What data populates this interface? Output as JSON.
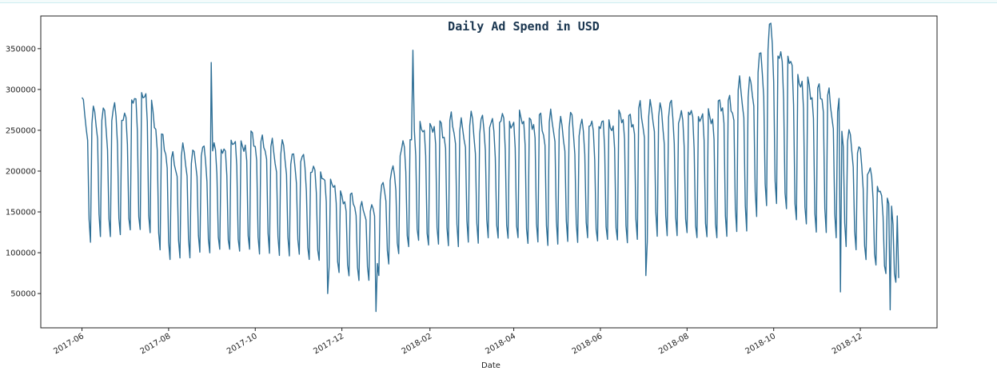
{
  "page": {
    "background": "#ffffff"
  },
  "chart_data": {
    "type": "line",
    "title": "Daily Ad Spend in USD",
    "xlabel": "Date",
    "ylabel": "",
    "line_color": "#2e6f96",
    "grid": false,
    "legend": "none",
    "x_start": "2017-06-01",
    "x_end": "2018-12-28",
    "xlim": [
      "2017-05-03",
      "2019-01-24"
    ],
    "ylim": [
      8000,
      390000
    ],
    "x_ticks": [
      "2017-06-01",
      "2017-08-01",
      "2017-10-01",
      "2017-12-01",
      "2018-02-01",
      "2018-04-01",
      "2018-06-01",
      "2018-08-01",
      "2018-10-01",
      "2018-12-01"
    ],
    "x_tick_labels": [
      "2017-06",
      "2017-08",
      "2017-10",
      "2017-12",
      "2018-02",
      "2018-04",
      "2018-06",
      "2018-08",
      "2018-10",
      "2018-12"
    ],
    "y_ticks": [
      50000,
      100000,
      150000,
      200000,
      250000,
      300000,
      350000
    ],
    "y_tick_labels": [
      "50000",
      "100000",
      "150000",
      "200000",
      "250000",
      "300000",
      "350000"
    ],
    "weekly_pattern": [
      1.0,
      1.02,
      1.0,
      0.97,
      0.88,
      0.52,
      0.44
    ],
    "peak_anchors": [
      [
        "2017-06-01",
        268000
      ],
      [
        "2017-07-01",
        270000
      ],
      [
        "2017-07-15",
        298000
      ],
      [
        "2017-08-01",
        215000
      ],
      [
        "2017-09-01",
        225000
      ],
      [
        "2017-10-01",
        238000
      ],
      [
        "2017-11-01",
        215000
      ],
      [
        "2017-11-20",
        190000
      ],
      [
        "2017-12-01",
        170000
      ],
      [
        "2017-12-22",
        150000
      ],
      [
        "2018-01-05",
        200000
      ],
      [
        "2018-01-20",
        250000
      ],
      [
        "2018-02-15",
        255000
      ],
      [
        "2018-04-01",
        262000
      ],
      [
        "2018-06-01",
        255000
      ],
      [
        "2018-07-10",
        275000
      ],
      [
        "2018-08-15",
        265000
      ],
      [
        "2018-09-15",
        305000
      ],
      [
        "2018-09-28",
        365000
      ],
      [
        "2018-10-10",
        335000
      ],
      [
        "2018-10-25",
        300000
      ],
      [
        "2018-11-10",
        290000
      ],
      [
        "2018-11-20",
        255000
      ],
      [
        "2018-12-10",
        190000
      ],
      [
        "2018-12-28",
        140000
      ]
    ],
    "outliers": [
      [
        "2017-06-01",
        290000
      ],
      [
        "2017-08-31",
        333000
      ],
      [
        "2017-11-21",
        50000
      ],
      [
        "2017-12-25",
        28000
      ],
      [
        "2018-01-20",
        348000
      ],
      [
        "2018-07-03",
        72000
      ],
      [
        "2018-09-28",
        380000
      ],
      [
        "2018-11-17",
        52000
      ],
      [
        "2018-12-22",
        30000
      ],
      [
        "2018-12-28",
        69000
      ]
    ]
  }
}
